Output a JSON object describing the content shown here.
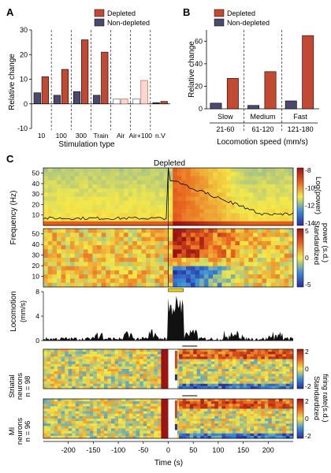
{
  "colors": {
    "depleted": "#c24a32",
    "non_depleted": "#4a4a6e",
    "heat_low": "#2c2b9e",
    "heat_mid": "#f4e94a",
    "heat_high": "#9c1313",
    "trace": "#000000",
    "locomotion_fill": "#111111",
    "stim_bar": "#f2d20a"
  },
  "panel_labels": {
    "a": "A",
    "b": "B",
    "c": "C"
  },
  "chart_data": [
    {
      "id": "A",
      "type": "bar",
      "xlabel": "Stimulation type",
      "ylabel": "Relative change",
      "ylim": [
        -10,
        30
      ],
      "yticks": [
        -10,
        0,
        10,
        20,
        30
      ],
      "categories": [
        "10",
        "100",
        "300",
        "Train",
        "Air",
        "Air+100",
        "n.V"
      ],
      "legend": [
        "Depleted",
        "Non-depleted"
      ],
      "legend_position": "top-right",
      "series": [
        {
          "name": "Depleted",
          "values": [
            11,
            14,
            26,
            21,
            2,
            9.5,
            1
          ]
        },
        {
          "name": "Non-depleted",
          "values": [
            4.5,
            3.5,
            5,
            3.5,
            2,
            2,
            0.5
          ]
        }
      ]
    },
    {
      "id": "B",
      "type": "bar",
      "xlabel": "Locomotion speed (mm/s)",
      "ylabel": "Relative change",
      "ylim": [
        0,
        70
      ],
      "yticks": [
        0,
        20,
        40,
        60
      ],
      "group_labels": [
        "Slow",
        "Medium",
        "Fast"
      ],
      "categories": [
        "21-60",
        "61-120",
        "121-180"
      ],
      "legend": [
        "Depleted",
        "Non-depleted"
      ],
      "legend_position": "top-left",
      "series": [
        {
          "name": "Depleted",
          "values": [
            27,
            33,
            65
          ]
        },
        {
          "name": "Non-depleted",
          "values": [
            5,
            3,
            7
          ]
        }
      ]
    },
    {
      "id": "C",
      "type": "heatmap",
      "title": "Depleted",
      "xlabel": "Time (s)",
      "xlim": [
        -250,
        250
      ],
      "xticks": [
        -200,
        -150,
        -100,
        -50,
        0,
        50,
        100,
        150,
        200
      ],
      "event_time": 0,
      "rows": [
        {
          "ylabel": "Frequency (Hz)",
          "yticks": [
            10,
            20,
            30,
            40,
            50
          ],
          "colorbar_label": "Log(power)",
          "colorbar_ticks": [
            "-8",
            "-10",
            "-12",
            "-14"
          ]
        },
        {
          "ylabel": "",
          "yticks": [
            10,
            20,
            30,
            40,
            50
          ],
          "colorbar_label_lines": [
            "Standardized",
            "power (s.d.)"
          ],
          "colorbar_ticks": [
            "5",
            "0",
            "-5"
          ]
        },
        {
          "ylabel": "Locomotion",
          "unit": "(mm/s)",
          "yticks": [
            0,
            4,
            8
          ]
        },
        {
          "ylabel_lines": [
            "Striatal",
            "neurons",
            "n = 98"
          ],
          "colorbar_ticks": [
            "2",
            "0",
            "-2"
          ]
        },
        {
          "ylabel_lines": [
            "MI",
            "neurons",
            "n = 96"
          ],
          "colorbar_ticks": [
            "2",
            "0",
            "-2"
          ]
        }
      ],
      "shared_colorbar_label_lines": [
        "Standardized",
        "firing rate(s.d.)"
      ],
      "locomotion_peak_mm_s": 7.5,
      "stim_bar_time": [
        0,
        30
      ]
    }
  ]
}
